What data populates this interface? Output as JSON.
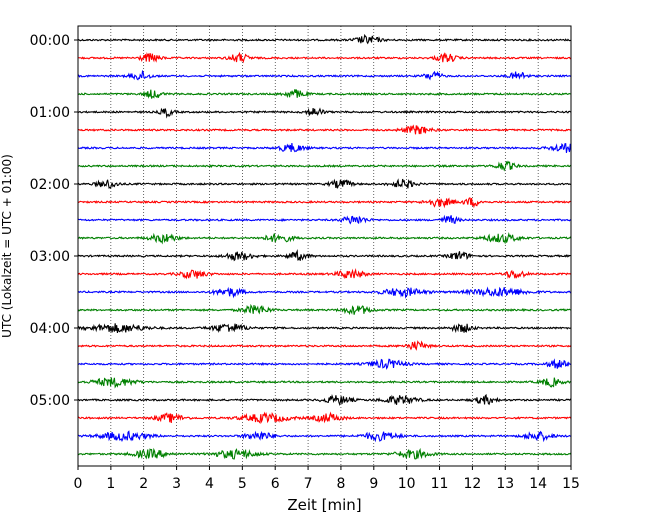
{
  "chart_data": {
    "type": "line",
    "xlabel": "Zeit  [min]",
    "ylabel": "UTC (Lokalzeit = UTC + 01:00)",
    "xlim": [
      0,
      15
    ],
    "x_ticks": [
      "0",
      "1",
      "2",
      "3",
      "4",
      "5",
      "6",
      "7",
      "8",
      "9",
      "10",
      "11",
      "12",
      "13",
      "14",
      "15"
    ],
    "y_ticks": [
      "00:00",
      "01:00",
      "02:00",
      "03:00",
      "04:00",
      "05:00"
    ],
    "grid": "vertical-dotted",
    "trace_interval_minutes": 15,
    "trace_colors": [
      "#000000",
      "#ff0000",
      "#0000ff",
      "#008000"
    ],
    "traces": [
      {
        "start": "00:00",
        "color": "#000000",
        "bursts": [
          [
            8.8,
            0.35
          ]
        ]
      },
      {
        "start": "00:15",
        "color": "#ff0000",
        "bursts": [
          [
            2.2,
            0.3
          ],
          [
            4.9,
            0.3
          ],
          [
            11.2,
            0.3
          ]
        ]
      },
      {
        "start": "00:30",
        "color": "#0000ff",
        "bursts": [
          [
            1.9,
            0.3
          ],
          [
            10.8,
            0.25
          ],
          [
            13.4,
            0.25
          ]
        ]
      },
      {
        "start": "00:45",
        "color": "#008000",
        "bursts": [
          [
            2.3,
            0.25
          ],
          [
            6.6,
            0.3
          ]
        ]
      },
      {
        "start": "01:00",
        "color": "#000000",
        "bursts": [
          [
            2.7,
            0.2
          ],
          [
            7.2,
            0.25
          ]
        ]
      },
      {
        "start": "01:15",
        "color": "#ff0000",
        "bursts": [
          [
            10.3,
            0.4
          ]
        ]
      },
      {
        "start": "01:30",
        "color": "#0000ff",
        "bursts": [
          [
            6.5,
            0.35
          ],
          [
            14.8,
            0.4
          ]
        ]
      },
      {
        "start": "01:45",
        "color": "#008000",
        "bursts": [
          [
            13.0,
            0.3
          ]
        ]
      },
      {
        "start": "02:00",
        "color": "#000000",
        "bursts": [
          [
            0.9,
            0.3
          ],
          [
            8.0,
            0.3
          ],
          [
            9.9,
            0.35
          ]
        ]
      },
      {
        "start": "02:15",
        "color": "#ff0000",
        "bursts": [
          [
            11.0,
            0.4
          ],
          [
            12.0,
            0.25
          ]
        ]
      },
      {
        "start": "02:30",
        "color": "#0000ff",
        "bursts": [
          [
            8.4,
            0.35
          ],
          [
            11.3,
            0.25
          ]
        ]
      },
      {
        "start": "02:45",
        "color": "#008000",
        "bursts": [
          [
            2.6,
            0.4
          ],
          [
            6.1,
            0.4
          ],
          [
            12.9,
            0.5
          ]
        ]
      },
      {
        "start": "03:00",
        "color": "#000000",
        "bursts": [
          [
            4.9,
            0.4
          ],
          [
            6.7,
            0.3
          ],
          [
            11.6,
            0.3
          ]
        ]
      },
      {
        "start": "03:15",
        "color": "#ff0000",
        "bursts": [
          [
            3.5,
            0.4
          ],
          [
            8.3,
            0.4
          ],
          [
            13.3,
            0.3
          ]
        ]
      },
      {
        "start": "03:30",
        "color": "#0000ff",
        "bursts": [
          [
            4.6,
            0.4
          ],
          [
            9.9,
            0.6
          ],
          [
            12.8,
            0.8
          ]
        ]
      },
      {
        "start": "03:45",
        "color": "#008000",
        "bursts": [
          [
            5.4,
            0.4
          ],
          [
            8.5,
            0.4
          ]
        ]
      },
      {
        "start": "04:00",
        "color": "#000000",
        "bursts": [
          [
            1.2,
            0.8
          ],
          [
            4.6,
            0.5
          ],
          [
            11.7,
            0.3
          ]
        ]
      },
      {
        "start": "04:15",
        "color": "#ff0000",
        "bursts": [
          [
            10.3,
            0.3
          ]
        ]
      },
      {
        "start": "04:30",
        "color": "#0000ff",
        "bursts": [
          [
            9.4,
            0.5
          ],
          [
            14.6,
            0.3
          ]
        ]
      },
      {
        "start": "04:45",
        "color": "#008000",
        "bursts": [
          [
            1.1,
            0.6
          ],
          [
            14.4,
            0.3
          ]
        ]
      },
      {
        "start": "05:00",
        "color": "#000000",
        "bursts": [
          [
            7.9,
            0.4
          ],
          [
            9.8,
            0.5
          ],
          [
            12.4,
            0.3
          ]
        ]
      },
      {
        "start": "05:15",
        "color": "#ff0000",
        "bursts": [
          [
            2.8,
            0.4
          ],
          [
            5.7,
            0.7
          ],
          [
            7.6,
            0.4
          ]
        ]
      },
      {
        "start": "05:30",
        "color": "#0000ff",
        "bursts": [
          [
            1.4,
            0.7
          ],
          [
            5.5,
            0.4
          ],
          [
            9.2,
            0.5
          ],
          [
            14.0,
            0.4
          ]
        ]
      },
      {
        "start": "05:45",
        "color": "#008000",
        "bursts": [
          [
            2.2,
            0.5
          ],
          [
            4.8,
            0.6
          ],
          [
            10.2,
            0.5
          ]
        ]
      }
    ]
  }
}
